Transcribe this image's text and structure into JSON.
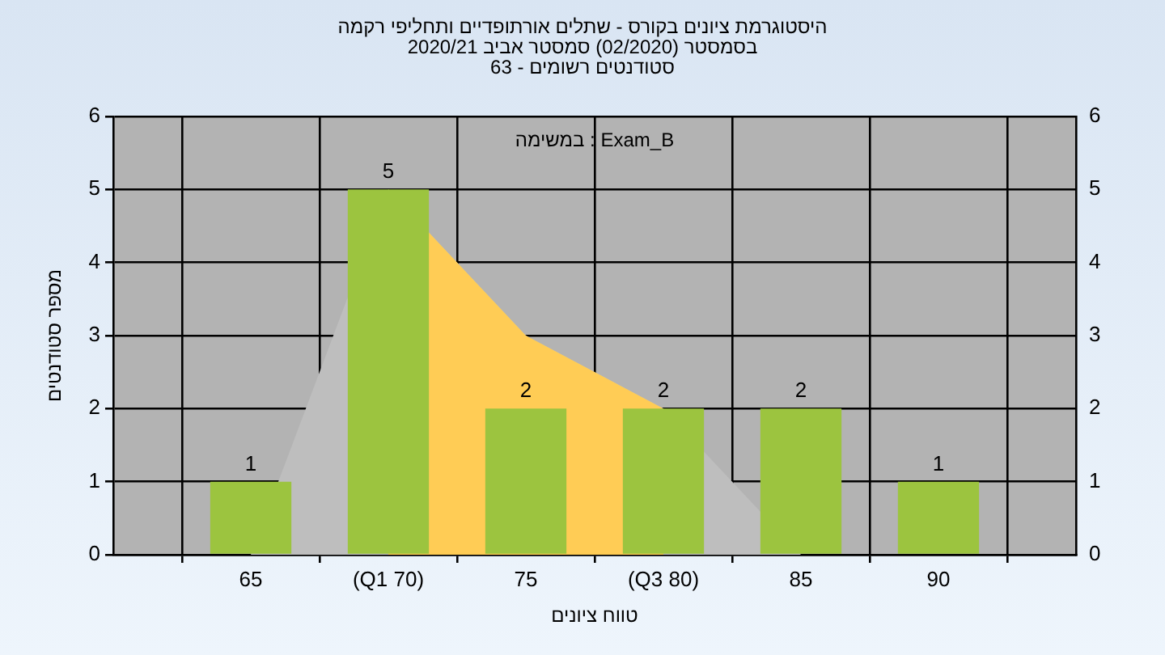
{
  "chart_data": {
    "type": "bar",
    "title": "היסטוגרמת ציונים בקורס - שתלים אורתופדיים ותחליפי רקמה",
    "subtitle": "בסמסטר (02/2020) סמסטר אביב 2020/21\nסטודנטים רשומים - 63",
    "xlabel": "טווח ציונים",
    "ylabel": "מספר סטודנטים",
    "annotations": [
      "Exam_B : במשימה"
    ],
    "categories": [
      "65",
      "(Q1 70)",
      "75",
      "(Q3 80)",
      "85",
      "90"
    ],
    "series": [
      {
        "type": "area",
        "color": "#bebebe",
        "values": [
          0,
          5,
          3,
          2,
          0,
          0
        ]
      },
      {
        "type": "area",
        "color": "#ffcc55",
        "values": [
          null,
          5,
          3,
          2,
          null,
          null
        ]
      },
      {
        "color": "#9cc43f",
        "values": [
          1,
          5,
          2,
          2,
          2,
          1
        ],
        "value_labels": [
          "1",
          "5",
          "2",
          "2",
          "2",
          "1"
        ]
      }
    ],
    "ylim": [
      0,
      6
    ],
    "yticks": [
      0,
      1,
      2,
      3,
      4,
      5,
      6
    ],
    "y2lim": [
      0,
      6
    ],
    "y2ticks": [
      0,
      1,
      2,
      3,
      4,
      5,
      6
    ],
    "grid": true,
    "legend": false
  }
}
